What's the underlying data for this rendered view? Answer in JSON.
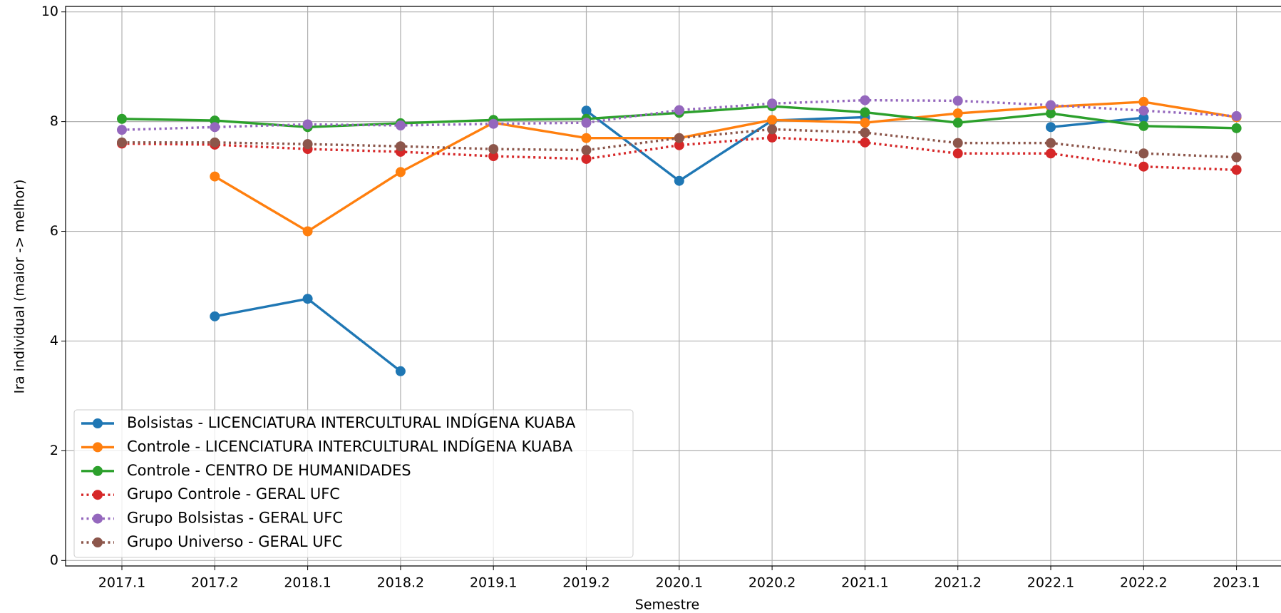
{
  "chart_data": {
    "type": "line",
    "xlabel": "Semestre",
    "ylabel": "Ira individual (maior -> melhor)",
    "categories": [
      "2017.1",
      "2017.2",
      "2018.1",
      "2018.2",
      "2019.1",
      "2019.2",
      "2020.1",
      "2020.2",
      "2021.1",
      "2021.2",
      "2022.1",
      "2022.2",
      "2023.1"
    ],
    "ylim": [
      -0.1,
      10.1
    ],
    "yticks": [
      0,
      2,
      4,
      6,
      8,
      10
    ],
    "grid": true,
    "legend": "lower left",
    "series": [
      {
        "name": "Bolsistas - LICENCIATURA INTERCULTURAL INDÍGENA KUABA",
        "color": "#1f77b4",
        "linestyle": "solid",
        "values": [
          null,
          4.45,
          4.77,
          3.45,
          null,
          8.2,
          6.92,
          8.02,
          8.08,
          null,
          7.9,
          8.07,
          null
        ]
      },
      {
        "name": "Controle - LICENCIATURA INTERCULTURAL INDÍGENA KUABA",
        "color": "#ff7f0e",
        "linestyle": "solid",
        "values": [
          null,
          7.0,
          6.0,
          7.08,
          7.98,
          7.7,
          7.7,
          8.03,
          7.98,
          8.15,
          8.27,
          8.36,
          8.08
        ]
      },
      {
        "name": "Controle - CENTRO DE HUMANIDADES",
        "color": "#2ca02c",
        "linestyle": "solid",
        "values": [
          8.05,
          8.02,
          7.9,
          7.97,
          8.03,
          8.05,
          8.16,
          8.28,
          8.17,
          7.98,
          8.15,
          7.92,
          7.88
        ]
      },
      {
        "name": "Grupo Controle - GERAL UFC",
        "color": "#d62728",
        "linestyle": "dotted",
        "values": [
          7.6,
          7.58,
          7.5,
          7.45,
          7.37,
          7.32,
          7.57,
          7.71,
          7.62,
          7.42,
          7.42,
          7.18,
          7.12
        ]
      },
      {
        "name": "Grupo Bolsistas - GERAL UFC",
        "color": "#9467bd",
        "linestyle": "dotted",
        "values": [
          7.85,
          7.9,
          7.95,
          7.93,
          7.96,
          7.98,
          8.21,
          8.33,
          8.39,
          8.38,
          8.3,
          8.2,
          8.1
        ]
      },
      {
        "name": "Grupo Universo - GERAL UFC",
        "color": "#8c564b",
        "linestyle": "dotted",
        "values": [
          7.62,
          7.62,
          7.59,
          7.55,
          7.5,
          7.48,
          7.7,
          7.86,
          7.8,
          7.61,
          7.61,
          7.42,
          7.35
        ]
      }
    ]
  }
}
